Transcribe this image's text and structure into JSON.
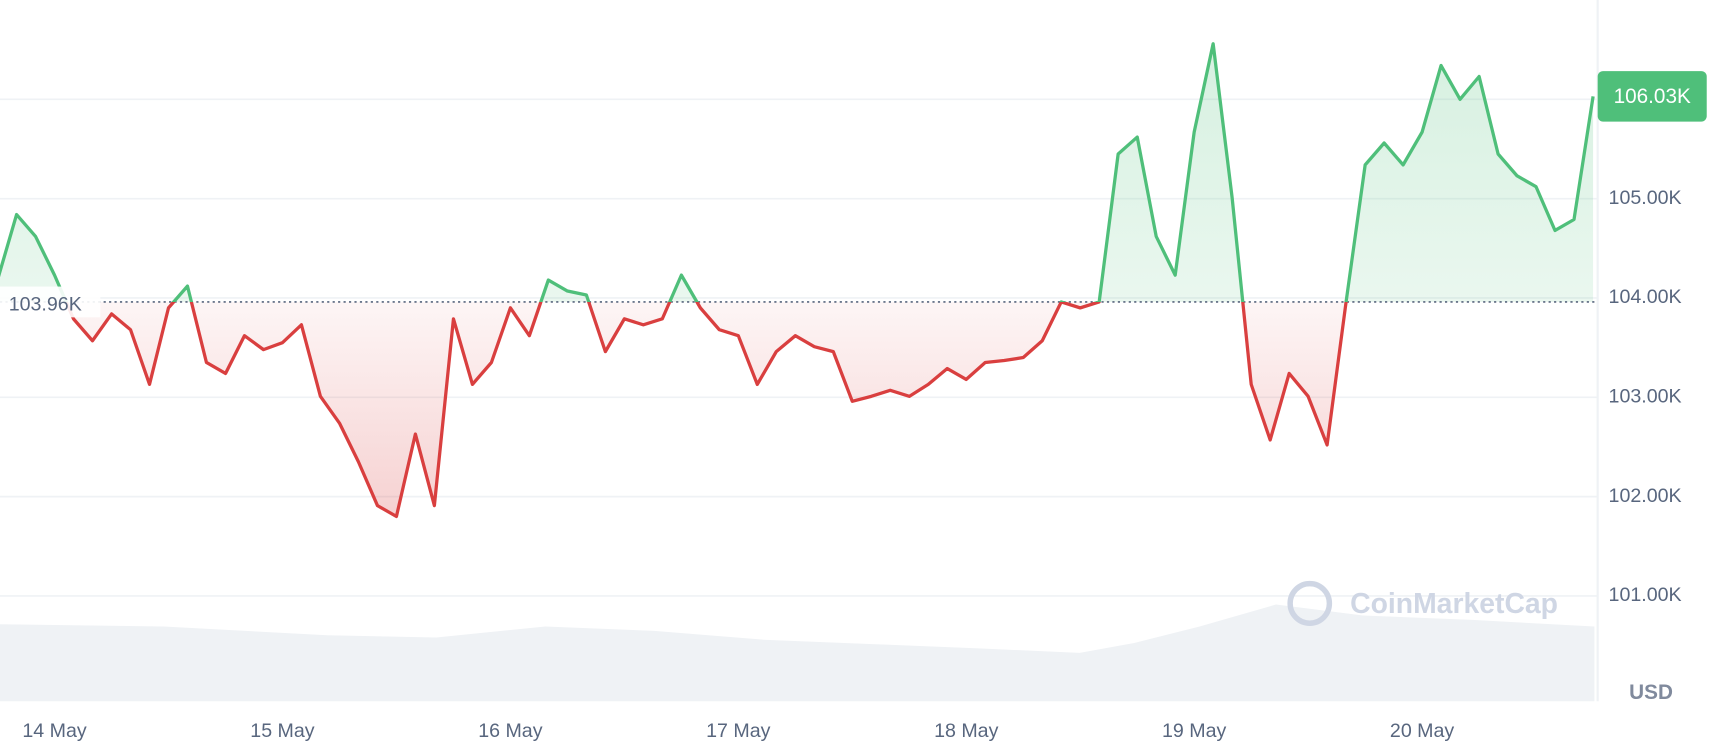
{
  "chart_data": {
    "type": "line",
    "categories": [
      null,
      null,
      null,
      "14 May",
      null,
      null,
      null,
      null,
      null,
      null,
      null,
      null,
      null,
      null,
      null,
      "15 May",
      null,
      null,
      null,
      null,
      null,
      null,
      null,
      null,
      null,
      null,
      null,
      "16 May",
      null,
      null,
      null,
      null,
      null,
      null,
      null,
      null,
      null,
      null,
      null,
      "17 May",
      null,
      null,
      null,
      null,
      null,
      null,
      null,
      null,
      null,
      null,
      null,
      "18 May",
      null,
      null,
      null,
      null,
      null,
      null,
      null,
      null,
      null,
      null,
      null,
      "19 May",
      null,
      null,
      null,
      null,
      null,
      null,
      null,
      null,
      null,
      null,
      null,
      "20 May",
      null,
      null,
      null,
      null,
      null,
      null,
      null,
      null,
      null
    ],
    "values": [
      104.18,
      104.84,
      104.62,
      104.23,
      103.79,
      103.57,
      103.84,
      103.68,
      103.13,
      103.9,
      104.12,
      103.35,
      103.24,
      103.62,
      103.48,
      103.55,
      103.73,
      103.01,
      102.74,
      102.35,
      101.91,
      101.8,
      102.63,
      101.91,
      103.79,
      103.13,
      103.35,
      103.9,
      103.62,
      104.18,
      104.07,
      104.03,
      103.46,
      103.79,
      103.73,
      103.79,
      104.23,
      103.9,
      103.68,
      103.62,
      103.13,
      103.46,
      103.62,
      103.51,
      103.46,
      102.96,
      103.01,
      103.07,
      103.01,
      103.13,
      103.29,
      103.18,
      103.35,
      103.37,
      103.4,
      103.57,
      103.96,
      103.9,
      103.96,
      105.45,
      105.62,
      104.62,
      104.23,
      105.67,
      106.56,
      105.01,
      103.13,
      102.57,
      103.24,
      103.01,
      102.52,
      103.96,
      105.34,
      105.56,
      105.34,
      105.67,
      106.34,
      106.0,
      106.23,
      105.45,
      105.23,
      105.12,
      104.68,
      104.79,
      106.03
    ],
    "up_color": "#4fbf7a",
    "down_color": "#d93f3f",
    "baseline": {
      "value": 103.96,
      "label": "103.96K"
    },
    "current_price": {
      "value": 106.03,
      "label": "106.03K"
    },
    "ylim": [
      99.94,
      107.0
    ],
    "yticks": [
      {
        "value": 101,
        "label": "101.00K"
      },
      {
        "value": 102,
        "label": "102.00K"
      },
      {
        "value": 103,
        "label": "103.00K"
      },
      {
        "value": 104,
        "label": "104.00K"
      },
      {
        "value": 105,
        "label": "105.00K"
      },
      {
        "value": 106,
        "label": "106.00K"
      }
    ],
    "y_axis_label": "USD",
    "watermark": "CoinMarketCap",
    "grid": true
  }
}
